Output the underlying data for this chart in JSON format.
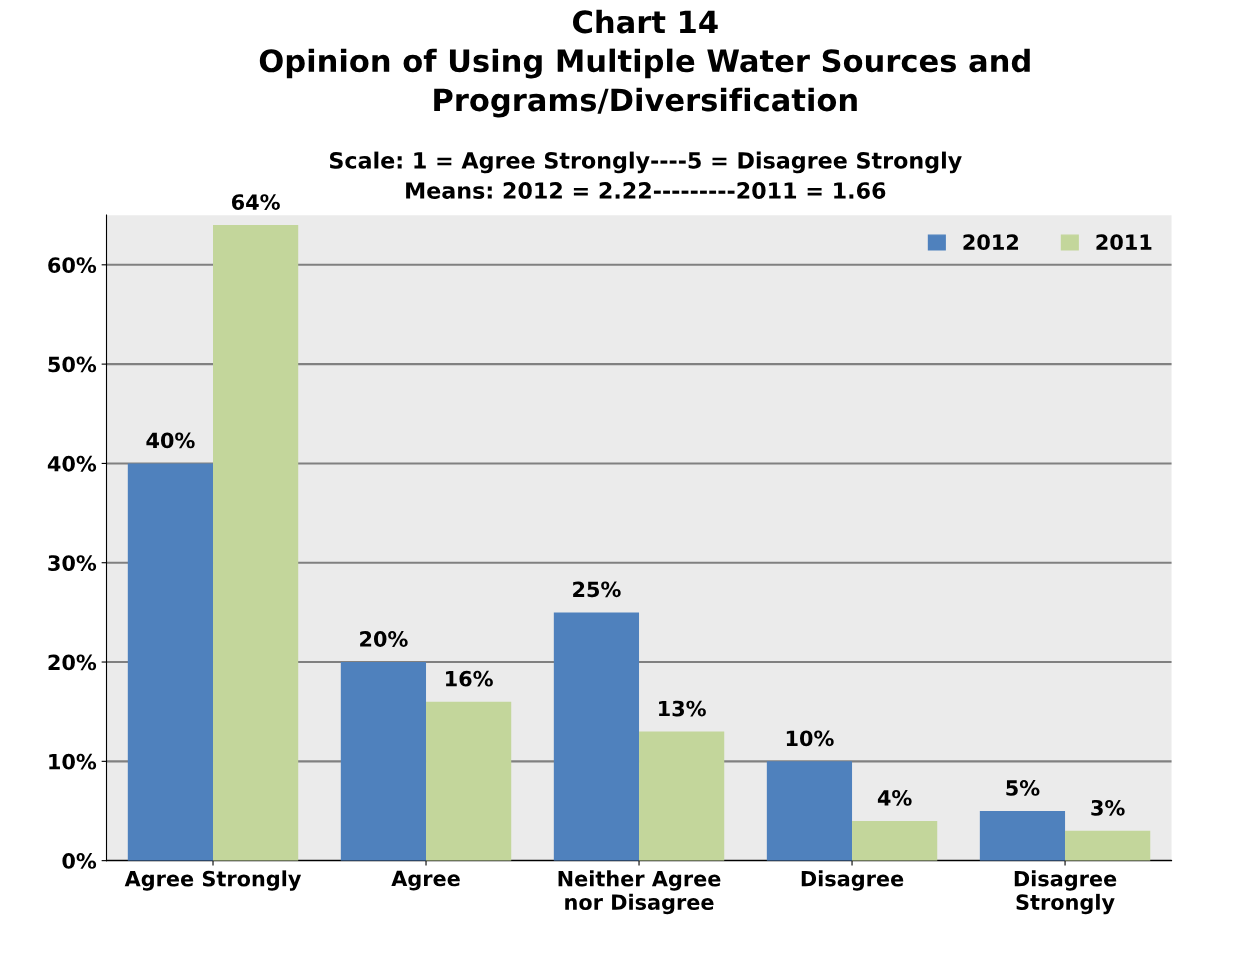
{
  "chart_data": {
    "type": "bar",
    "title": "Chart 14\nOpinion of Using Multiple Water Sources and\nPrograms/Diversification",
    "subtitle": "Scale: 1 = Agree Strongly----5 = Disagree Strongly\nMeans: 2012 = 2.22---------2011 = 1.66",
    "categories": [
      "Agree Strongly",
      "Agree",
      "Neither Agree\nnor Disagree",
      "Disagree",
      "Disagree\nStrongly"
    ],
    "series": [
      {
        "name": "2012",
        "color": "#4f81bd",
        "values": [
          40,
          20,
          25,
          10,
          5
        ],
        "value_labels": [
          "40%",
          "20%",
          "25%",
          "10%",
          "5%"
        ]
      },
      {
        "name": "2011",
        "color": "#c3d69b",
        "values": [
          64,
          16,
          13,
          4,
          3
        ],
        "value_labels": [
          "64%",
          "16%",
          "13%",
          "4%",
          "3%"
        ]
      }
    ],
    "ylim": [
      0,
      65
    ],
    "yticks": [
      {
        "value": 0,
        "label": "0%"
      },
      {
        "value": 10,
        "label": "10%"
      },
      {
        "value": 20,
        "label": "20%"
      },
      {
        "value": 30,
        "label": "30%"
      },
      {
        "value": 40,
        "label": "40%"
      },
      {
        "value": 50,
        "label": "50%"
      },
      {
        "value": 60,
        "label": "60%"
      }
    ],
    "grid": "y",
    "legend": "top right"
  }
}
